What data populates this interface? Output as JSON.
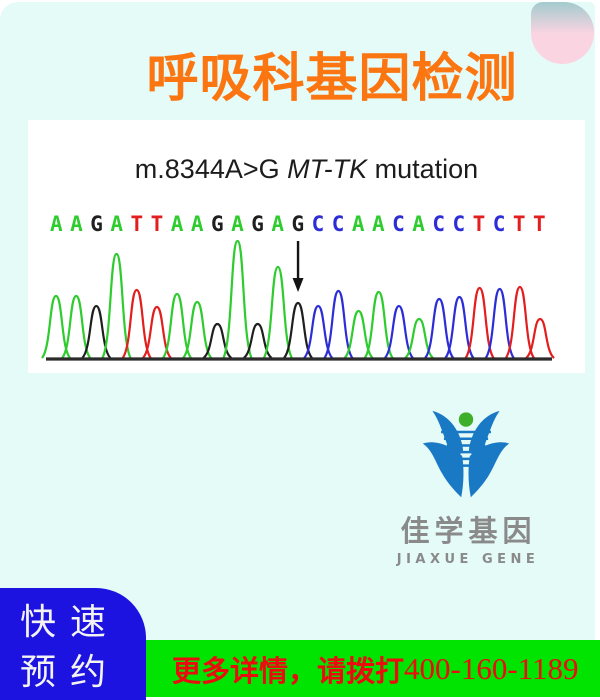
{
  "header": {
    "title": "呼吸科基因检测"
  },
  "chart_data": {
    "type": "line",
    "variant": "sanger_chromatogram_trace",
    "title": "m.8344A>G MT-TK mutation",
    "title_parts": {
      "prefix": "m.8344A>G ",
      "gene_italic": "MT-TK",
      "suffix": " mutation"
    },
    "bases": "AAGATTAAGAGAGCCAACACCTCTT",
    "peak_heights": [
      62,
      62,
      52,
      104,
      68,
      51,
      64,
      56,
      34,
      117,
      34,
      91,
      55,
      52,
      67,
      47,
      66,
      52,
      39,
      59,
      61,
      70,
      69,
      71,
      39
    ],
    "base_colors": {
      "A": "#2ecc2e",
      "G": "#1f1f1f",
      "T": "#e31e1e",
      "C": "#2d2dd8"
    },
    "arrow_base_index": 12,
    "arrow_color": "#141414",
    "baseline_color": "#2b2b2b",
    "legend": "none",
    "grid": false
  },
  "logo": {
    "name_cn": "佳学基因",
    "name_en": "JIAXUE GENE",
    "wing_color": "#1a79c4",
    "dot_color": "#3fae2a"
  },
  "badge": {
    "line1": "快速",
    "line2": "预约"
  },
  "footer": {
    "text_cn": "更多详情，请拨打",
    "phone": "400-160-1189"
  },
  "colors": {
    "bg-mint": "#e4fbf8",
    "title-orange": "#fb7511",
    "badge-blue": "#1c13e0",
    "bar-green": "#01e301",
    "text-red": "#ea0d0d",
    "logo-blue": "#1a79c4",
    "logo-green": "#3fae2a",
    "logo-gray": "#8a8a8a",
    "pink-top": "#a3cbcd",
    "pink-bottom": "#fbd4e2"
  }
}
